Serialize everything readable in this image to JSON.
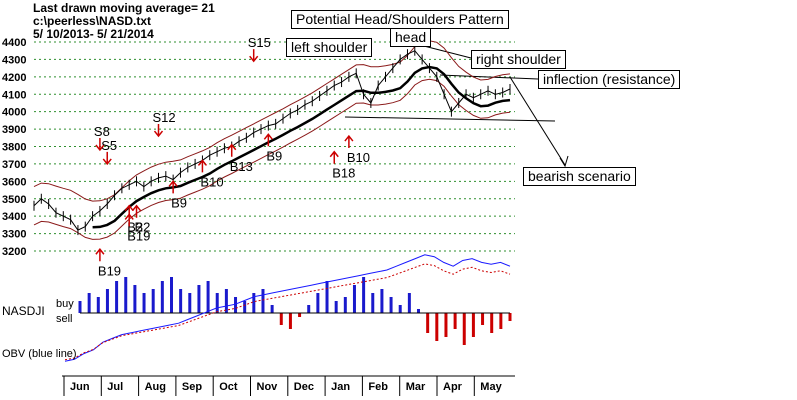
{
  "header": {
    "line1": "Last drawn moving average= 21",
    "line2": "c:\\peerless\\NASD.txt",
    "line3": "5/ 10/2013- 5/ 21/2014"
  },
  "annotations": {
    "title": "Potential Head/Shoulders Pattern",
    "head": "head",
    "left_shoulder": "left shoulder",
    "right_shoulder": "right shoulder",
    "inflection": "inflection (resistance)",
    "bearish": "bearish scenario"
  },
  "panel_labels": {
    "nasdji": "NASDJI",
    "buy": "buy",
    "sell": "sell",
    "obv": "OBV (blue line)"
  },
  "colors": {
    "price": "#000000",
    "band": "#8b1a1a",
    "ma": "#000000",
    "signal_buy": "#cc0000",
    "signal_sell": "#cc0000",
    "nasdji_pos": "#1a1acc",
    "nasdji_neg": "#cc0000",
    "obv": "#1a1aff",
    "obv_ma": "#cc0000",
    "grid": "#2f8f2f"
  },
  "chart_data": {
    "type": "line",
    "title": "",
    "xlabel": "",
    "ylabel": "",
    "ylim": [
      3200,
      4400
    ],
    "yticks": [
      3200,
      3300,
      3400,
      3500,
      3600,
      3700,
      3800,
      3900,
      4000,
      4100,
      4200,
      4300,
      4400
    ],
    "months": [
      "Jun",
      "Jul",
      "Aug",
      "Sep",
      "Oct",
      "Nov",
      "Dec",
      "Jan",
      "Feb",
      "Mar",
      "Apr",
      "May"
    ],
    "series": [
      {
        "name": "NASD",
        "values": [
          3460,
          3500,
          3470,
          3420,
          3400,
          3380,
          3320,
          3340,
          3400,
          3430,
          3470,
          3520,
          3560,
          3580,
          3600,
          3570,
          3600,
          3620,
          3630,
          3610,
          3650,
          3680,
          3700,
          3720,
          3750,
          3770,
          3790,
          3800,
          3830,
          3850,
          3880,
          3900,
          3920,
          3930,
          3960,
          3990,
          4010,
          4040,
          4060,
          4090,
          4120,
          4150,
          4170,
          4200,
          4220,
          4100,
          4050,
          4150,
          4200,
          4250,
          4300,
          4330,
          4350,
          4300,
          4250,
          4200,
          4100,
          4000,
          4050,
          4100,
          4080,
          4100,
          4120,
          4100,
          4110,
          4130
        ]
      }
    ],
    "signals": [
      {
        "label": "B19",
        "type": "buy",
        "x": 9,
        "y": 3210
      },
      {
        "label": "S8",
        "type": "sell",
        "x": 9,
        "y": 3780
      },
      {
        "label": "S5",
        "type": "sell",
        "x": 10,
        "y": 3700
      },
      {
        "label": "B2",
        "type": "buy",
        "x": 13,
        "y": 3460
      },
      {
        "label": "B2",
        "type": "buy",
        "x": 14,
        "y": 3460
      },
      {
        "label": "B19",
        "type": "buy",
        "x": 13,
        "y": 3410
      },
      {
        "label": "S12",
        "type": "sell",
        "x": 17,
        "y": 3860
      },
      {
        "label": "B9",
        "type": "buy",
        "x": 19,
        "y": 3600
      },
      {
        "label": "B10",
        "type": "buy",
        "x": 23,
        "y": 3720
      },
      {
        "label": "B13",
        "type": "buy",
        "x": 27,
        "y": 3810
      },
      {
        "label": "S15",
        "type": "sell",
        "x": 30,
        "y": 4290
      },
      {
        "label": "B9",
        "type": "buy",
        "x": 32,
        "y": 3870
      },
      {
        "label": "B18",
        "type": "buy",
        "x": 41,
        "y": 3770
      },
      {
        "label": "B10",
        "type": "buy",
        "x": 43,
        "y": 3860
      }
    ],
    "nasdji": [
      0.3,
      0.5,
      0.4,
      0.6,
      0.8,
      0.9,
      0.7,
      0.5,
      0.6,
      0.8,
      0.9,
      0.6,
      0.5,
      0.7,
      0.8,
      0.5,
      0.6,
      0.4,
      0.3,
      0.5,
      0.6,
      0.2,
      -0.3,
      -0.4,
      -0.1,
      0.2,
      0.5,
      0.8,
      0.3,
      0.4,
      0.7,
      0.9,
      0.5,
      0.6,
      0.4,
      0.2,
      0.5,
      0.1,
      -0.5,
      -0.7,
      -0.6,
      -0.4,
      -0.8,
      -0.6,
      -0.3,
      -0.5,
      -0.4,
      -0.2
    ],
    "obv": [
      0.1,
      0.15,
      0.3,
      0.4,
      0.6,
      0.7,
      0.8,
      0.85,
      0.9,
      0.95,
      1.0,
      1.05,
      1.1,
      1.2,
      1.3,
      1.4,
      1.5,
      1.55,
      1.6,
      1.7,
      1.8,
      1.85,
      1.9,
      1.95,
      2.0,
      2.05,
      2.1,
      2.15,
      2.2,
      2.25,
      2.3,
      2.35,
      2.4,
      2.45,
      2.5,
      2.6,
      2.7,
      2.8,
      2.9,
      2.85,
      2.7,
      2.6,
      2.75,
      2.8,
      2.7,
      2.65,
      2.7,
      2.6
    ]
  }
}
